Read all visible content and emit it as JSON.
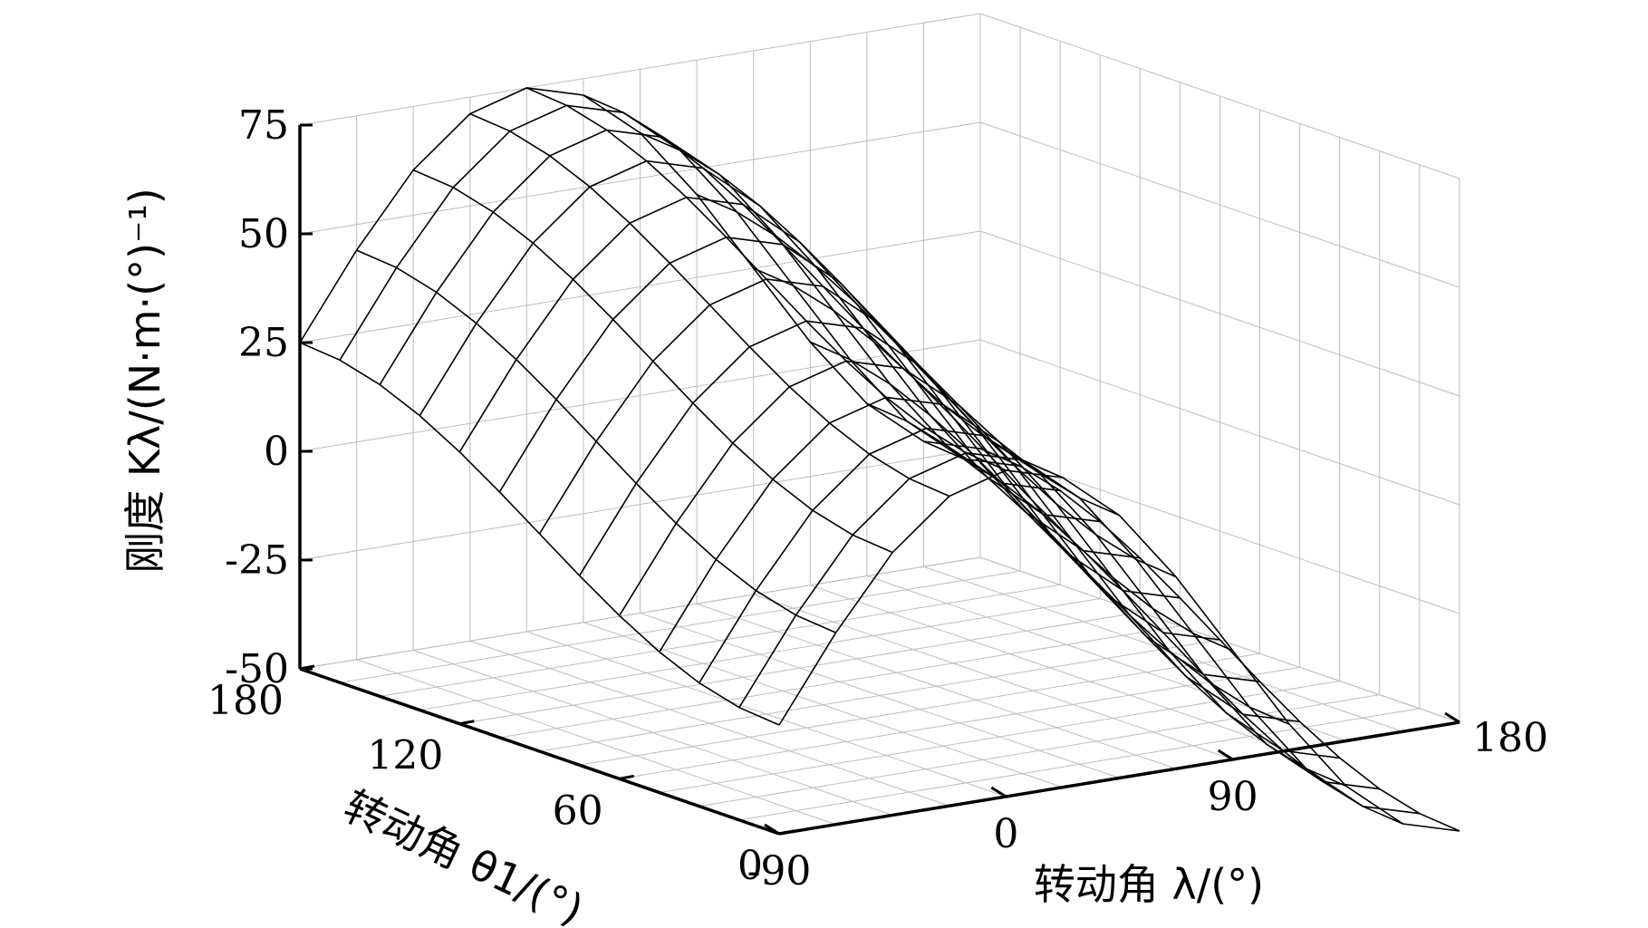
{
  "chart_data": {
    "type": "surface",
    "mesh": "wireframe",
    "grid": true,
    "zlabel": "刚度 Kλ/(N·m·(°)⁻¹)",
    "xlabel": "转动角 λ/(°)",
    "ylabel": "转动角 θ1/(°)",
    "xlim": [
      -90,
      180
    ],
    "ylim": [
      0,
      180
    ],
    "zlim": [
      -50,
      75
    ],
    "x_ticks": [
      "-90",
      "0",
      "90",
      "180"
    ],
    "y_ticks": [
      "0",
      "60",
      "120",
      "180"
    ],
    "z_ticks": [
      "75",
      "50",
      "25",
      "0",
      "-25",
      "-50"
    ],
    "surface": {
      "function": "Kλ ≈ 50·cos(λ) − 25·cos(θ1)",
      "lambda": [
        -90,
        -67.5,
        -45,
        -22.5,
        0,
        22.5,
        45,
        67.5,
        90,
        112.5,
        135,
        157.5,
        180
      ],
      "theta1": [
        0,
        15,
        30,
        45,
        60,
        75,
        90,
        105,
        120,
        135,
        150,
        165,
        180
      ],
      "z_at_theta1_0": [
        -25,
        -5.9,
        10.4,
        21.2,
        25,
        21.2,
        10.4,
        -5.9,
        -25,
        -44.1,
        -60.4,
        -71.2,
        -75
      ],
      "z_at_theta1_180": [
        25,
        44.1,
        60.4,
        71.2,
        75,
        71.2,
        60.4,
        44.1,
        25,
        5.9,
        -10.4,
        -21.2,
        -25
      ]
    }
  }
}
